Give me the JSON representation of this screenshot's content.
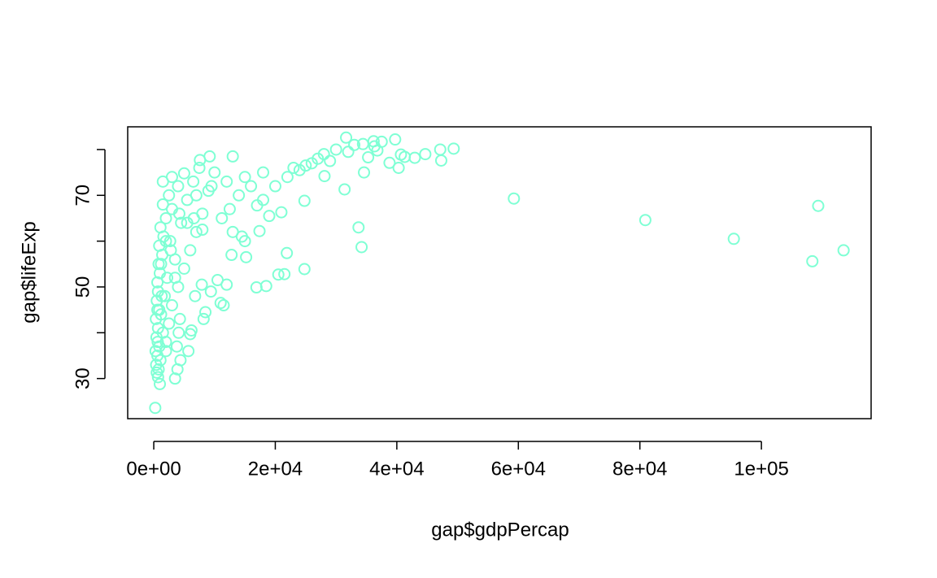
{
  "chart_data": {
    "type": "scatter",
    "xlabel": "gap$gdpPercap",
    "ylabel": "gap$lifeExp",
    "color": "#7FFFD4",
    "xlim": [
      -4290,
      118054
    ],
    "ylim": [
      21.24,
      84.96
    ],
    "xticks": [
      {
        "value": 0,
        "label": "0e+00"
      },
      {
        "value": 20000,
        "label": "2e+04"
      },
      {
        "value": 40000,
        "label": "4e+04"
      },
      {
        "value": 60000,
        "label": "6e+04"
      },
      {
        "value": 80000,
        "label": "8e+04"
      },
      {
        "value": 100000,
        "label": "1e+05"
      }
    ],
    "yticks": [
      30,
      {
        "value": 40,
        "label": null
      },
      50,
      {
        "value": 60,
        "label": null
      },
      70,
      {
        "value": 80,
        "label": null
      }
    ],
    "x": [
      241,
      1000,
      3500,
      700,
      500,
      800,
      400,
      1100,
      600,
      300,
      900,
      2000,
      450,
      1500,
      700,
      2500,
      350,
      1200,
      900,
      3000,
      500,
      1800,
      700,
      4000,
      600,
      2200,
      1000,
      5000,
      800,
      3500,
      1400,
      6000,
      900,
      2700,
      1600,
      7000,
      1100,
      4500,
      2000,
      8000,
      3000,
      1500,
      5500,
      2500,
      9000,
      4000,
      6500,
      3000,
      10000,
      7500,
      2000,
      3800,
      4100,
      6200,
      6000,
      4300,
      8200,
      8500,
      3900,
      4400,
      5700,
      6800,
      7900,
      9400,
      10500,
      11000,
      11500,
      12000,
      12800,
      13000,
      14500,
      15000,
      15200,
      11200,
      12500,
      14000,
      17000,
      18000,
      19000,
      20000,
      21000,
      22000,
      24000,
      25000,
      26000,
      27000,
      28000,
      29000,
      30000,
      32000,
      33000,
      18500,
      20500,
      21500,
      24800,
      21900,
      17400,
      16900,
      33700,
      34200,
      24800,
      31400,
      28100,
      59265,
      80895,
      95458,
      108382,
      113523,
      109348,
      49357,
      44684,
      47307,
      47143,
      42952,
      40676,
      39725,
      37506,
      31656,
      36181,
      36798,
      36319,
      34435,
      35278,
      40300,
      41300,
      34600,
      38800,
      9200,
      7600,
      5000,
      1500,
      2000,
      1200,
      1300,
      2800,
      3500,
      600,
      650,
      5500,
      7000,
      12000,
      15000,
      16000,
      18000,
      23000,
      13000,
      9500,
      8000,
      6600,
      4200
    ],
    "values": [
      23.6,
      28.8,
      30,
      30.3,
      31.3,
      32,
      33,
      34,
      35,
      36,
      37,
      38,
      39,
      40,
      41,
      42,
      43,
      44,
      45,
      46,
      47,
      48,
      49,
      50,
      51,
      52,
      53,
      54,
      55,
      56,
      57,
      58,
      59,
      60,
      61,
      62,
      63,
      64,
      65,
      66,
      67,
      68,
      69,
      70,
      71,
      72,
      73,
      74,
      75,
      76,
      36,
      37,
      40,
      40.5,
      39.7,
      43,
      43,
      44.5,
      32,
      34,
      36,
      48,
      50.5,
      49,
      51.5,
      46.5,
      46,
      50.5,
      57,
      62,
      61,
      60,
      56.5,
      65,
      67,
      70,
      67.8,
      69,
      65.5,
      72,
      66.3,
      74,
      75.5,
      76.5,
      77,
      78,
      79,
      77.5,
      80,
      79.5,
      81,
      50.2,
      52.7,
      52.8,
      53.9,
      57.4,
      62.2,
      49.9,
      63,
      58.7,
      68.8,
      71.3,
      74.2,
      69.3,
      64.6,
      60.5,
      55.6,
      58,
      67.7,
      80.2,
      79,
      77.6,
      80,
      78.2,
      78.9,
      82.2,
      81.7,
      82.6,
      81.8,
      79.8,
      80.7,
      81.2,
      78.3,
      76,
      78.4,
      75,
      77.1,
      78.5,
      77.7,
      74.8,
      73,
      60,
      55,
      48,
      58,
      52,
      45,
      38,
      64,
      70,
      73,
      74,
      72,
      75,
      76,
      78.5,
      72,
      62.5,
      65,
      66
    ]
  }
}
